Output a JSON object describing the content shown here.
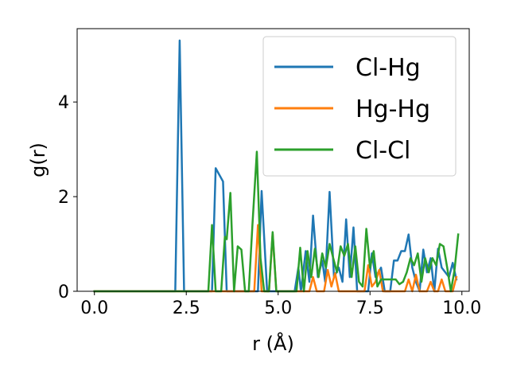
{
  "chart_data": {
    "type": "line",
    "xlabel": "r (Å)",
    "ylabel": "g(r)",
    "xlim": [
      -0.47,
      10.2
    ],
    "ylim": [
      0,
      5.55
    ],
    "xticks": [
      "0.0",
      "2.5",
      "5.0",
      "7.5",
      "10.0"
    ],
    "xtick_values": [
      0,
      2.5,
      5,
      7.5,
      10
    ],
    "yticks": [
      "0",
      "2",
      "4"
    ],
    "ytick_values": [
      0,
      2,
      4
    ],
    "grid": false,
    "legend_position": "top-right",
    "series": [
      {
        "name": "Cl-Hg",
        "color": "#1f77b4",
        "points": [
          [
            0,
            0
          ],
          [
            2.2,
            0
          ],
          [
            2.32,
            5.3
          ],
          [
            2.44,
            0
          ],
          [
            3.05,
            0
          ],
          [
            3.2,
            0
          ],
          [
            3.3,
            2.6
          ],
          [
            3.5,
            2.32
          ],
          [
            3.6,
            0
          ],
          [
            4.45,
            0
          ],
          [
            4.55,
            2.12
          ],
          [
            4.7,
            0
          ],
          [
            5.45,
            0
          ],
          [
            5.55,
            0.5
          ],
          [
            5.62,
            0
          ],
          [
            5.75,
            0.85
          ],
          [
            5.85,
            0.2
          ],
          [
            5.95,
            1.6
          ],
          [
            6.08,
            0.3
          ],
          [
            6.2,
            0.65
          ],
          [
            6.28,
            0.2
          ],
          [
            6.4,
            2.1
          ],
          [
            6.52,
            0.3
          ],
          [
            6.65,
            0.5
          ],
          [
            6.75,
            0.2
          ],
          [
            6.85,
            1.52
          ],
          [
            6.95,
            0.3
          ],
          [
            7.05,
            1.35
          ],
          [
            7.15,
            0
          ],
          [
            7.45,
            0
          ],
          [
            7.55,
            0.8
          ],
          [
            7.65,
            0.3
          ],
          [
            7.8,
            0.5
          ],
          [
            7.9,
            0
          ],
          [
            8.05,
            0
          ],
          [
            8.15,
            0.65
          ],
          [
            8.25,
            0.65
          ],
          [
            8.35,
            0.85
          ],
          [
            8.45,
            0.85
          ],
          [
            8.55,
            1.2
          ],
          [
            8.65,
            0.5
          ],
          [
            8.75,
            0.2
          ],
          [
            8.85,
            0
          ],
          [
            8.95,
            0.88
          ],
          [
            9.05,
            0.4
          ],
          [
            9.15,
            0.7
          ],
          [
            9.25,
            0
          ],
          [
            9.35,
            0.9
          ],
          [
            9.45,
            0.5
          ],
          [
            9.55,
            0.4
          ],
          [
            9.65,
            0.3
          ],
          [
            9.75,
            0.6
          ],
          [
            9.85,
            0.25
          ]
        ]
      },
      {
        "name": "Hg-Hg",
        "color": "#ff7f0e",
        "points": [
          [
            0,
            0
          ],
          [
            4.35,
            0
          ],
          [
            4.45,
            1.4
          ],
          [
            4.55,
            0
          ],
          [
            4.75,
            0
          ],
          [
            4.85,
            1.22
          ],
          [
            4.95,
            0
          ],
          [
            5.85,
            0
          ],
          [
            5.95,
            0.3
          ],
          [
            6.05,
            0
          ],
          [
            6.25,
            0
          ],
          [
            6.35,
            0.45
          ],
          [
            6.45,
            0.1
          ],
          [
            6.55,
            0.38
          ],
          [
            6.65,
            0
          ],
          [
            7.35,
            0
          ],
          [
            7.45,
            0.55
          ],
          [
            7.55,
            0.1
          ],
          [
            7.65,
            0.2
          ],
          [
            7.75,
            0.45
          ],
          [
            7.85,
            0
          ],
          [
            8.45,
            0
          ],
          [
            8.55,
            0.25
          ],
          [
            8.65,
            0
          ],
          [
            8.75,
            0.35
          ],
          [
            8.85,
            0
          ],
          [
            9.05,
            0
          ],
          [
            9.15,
            0.2
          ],
          [
            9.25,
            0
          ],
          [
            9.35,
            0
          ],
          [
            9.45,
            0.25
          ],
          [
            9.55,
            0
          ],
          [
            9.75,
            0
          ],
          [
            9.85,
            0.3
          ]
        ]
      },
      {
        "name": "Cl-Cl",
        "color": "#2ca02c",
        "points": [
          [
            0,
            0
          ],
          [
            3.1,
            0
          ],
          [
            3.2,
            1.4
          ],
          [
            3.3,
            0
          ],
          [
            3.45,
            0
          ],
          [
            3.55,
            1.15
          ],
          [
            3.6,
            1.1
          ],
          [
            3.7,
            2.08
          ],
          [
            3.8,
            0
          ],
          [
            3.9,
            0.95
          ],
          [
            4.0,
            0.88
          ],
          [
            4.1,
            0
          ],
          [
            4.2,
            0
          ],
          [
            4.3,
            1.4
          ],
          [
            4.42,
            2.95
          ],
          [
            4.52,
            0.7
          ],
          [
            4.62,
            0
          ],
          [
            4.75,
            0
          ],
          [
            4.85,
            1.25
          ],
          [
            4.95,
            0
          ],
          [
            5.5,
            0
          ],
          [
            5.6,
            0.92
          ],
          [
            5.7,
            0
          ],
          [
            5.8,
            0.85
          ],
          [
            5.9,
            0.3
          ],
          [
            6.0,
            0.9
          ],
          [
            6.1,
            0.3
          ],
          [
            6.2,
            0.8
          ],
          [
            6.3,
            0.5
          ],
          [
            6.4,
            1.0
          ],
          [
            6.5,
            0.7
          ],
          [
            6.6,
            0.4
          ],
          [
            6.7,
            0.95
          ],
          [
            6.8,
            0.75
          ],
          [
            6.9,
            1.0
          ],
          [
            7.0,
            0.3
          ],
          [
            7.1,
            0.95
          ],
          [
            7.2,
            0.2
          ],
          [
            7.3,
            0.1
          ],
          [
            7.4,
            1.32
          ],
          [
            7.5,
            0.5
          ],
          [
            7.6,
            0.85
          ],
          [
            7.7,
            0.1
          ],
          [
            7.8,
            0.25
          ],
          [
            7.9,
            0.25
          ],
          [
            8.0,
            0.25
          ],
          [
            8.1,
            0.25
          ],
          [
            8.2,
            0.25
          ],
          [
            8.3,
            0.15
          ],
          [
            8.4,
            0.2
          ],
          [
            8.5,
            0.4
          ],
          [
            8.6,
            0.7
          ],
          [
            8.7,
            0.55
          ],
          [
            8.8,
            0.8
          ],
          [
            8.9,
            0.2
          ],
          [
            9.0,
            0.7
          ],
          [
            9.1,
            0.4
          ],
          [
            9.2,
            0.7
          ],
          [
            9.3,
            0.55
          ],
          [
            9.4,
            1.0
          ],
          [
            9.5,
            0.95
          ],
          [
            9.6,
            0.5
          ],
          [
            9.7,
            0
          ],
          [
            9.8,
            0.45
          ],
          [
            9.9,
            1.2
          ]
        ]
      }
    ]
  }
}
